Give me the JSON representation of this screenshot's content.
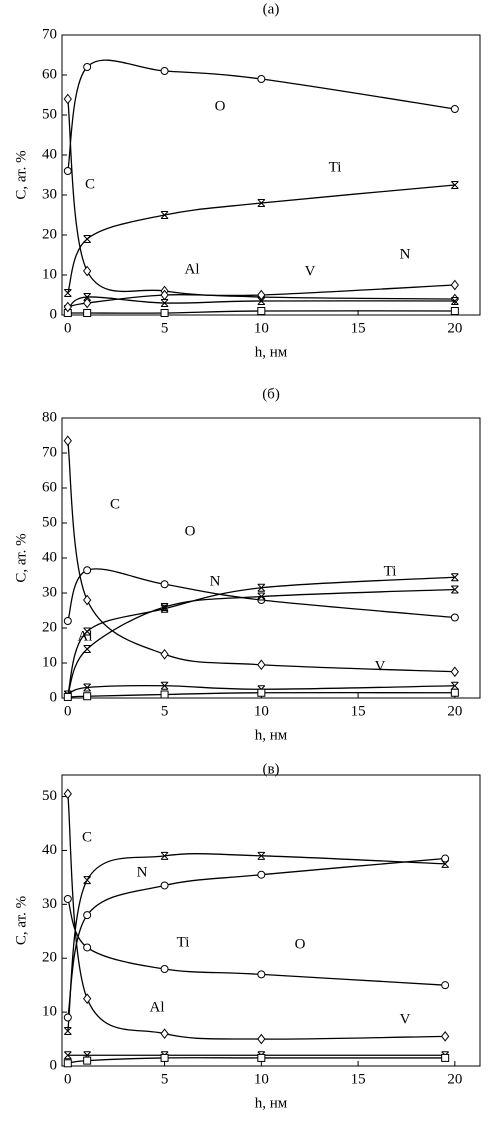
{
  "chart_data": [
    {
      "type": "line",
      "title": "(а)",
      "x_label": "h, нм",
      "y_label": "C, ат. %",
      "color": "#000000",
      "xlim": [
        -0.3,
        21.3
      ],
      "ylim": [
        0,
        70
      ],
      "xticks": [
        0,
        5,
        10,
        15,
        20
      ],
      "yticks": [
        0,
        10,
        20,
        30,
        40,
        50,
        60,
        70
      ],
      "x": [
        0,
        1,
        5,
        10,
        20
      ],
      "series": [
        {
          "name": "O",
          "marker": "circle",
          "values": [
            36,
            62,
            61,
            59,
            51.5
          ]
        },
        {
          "name": "C",
          "marker": "diamond",
          "values": [
            54,
            11,
            6,
            4.5,
            4
          ]
        },
        {
          "name": "Ti",
          "marker": "cross",
          "values": [
            5.5,
            19,
            25,
            28,
            32.5
          ]
        },
        {
          "name": "Al",
          "marker": "cross",
          "values": [
            1.5,
            4.5,
            3,
            3.5,
            3.5
          ]
        },
        {
          "name": "V",
          "marker": "square",
          "values": [
            0.5,
            0.5,
            0.5,
            1,
            1
          ]
        },
        {
          "name": "N",
          "marker": "diamond",
          "values": [
            2,
            3,
            5,
            5,
            7.5
          ]
        }
      ]
    },
    {
      "type": "line",
      "title": "(б)",
      "x_label": "h, нм",
      "y_label": "C, ат. %",
      "color": "#000000",
      "xlim": [
        -0.3,
        21.3
      ],
      "ylim": [
        0,
        80
      ],
      "xticks": [
        0,
        5,
        10,
        15,
        20
      ],
      "yticks": [
        0,
        10,
        20,
        30,
        40,
        50,
        60,
        70,
        80
      ],
      "x": [
        0,
        1,
        5,
        10,
        20
      ],
      "series": [
        {
          "name": "C",
          "marker": "diamond",
          "values": [
            73.5,
            28,
            12.5,
            9.5,
            7.5
          ]
        },
        {
          "name": "O",
          "marker": "circle",
          "values": [
            22,
            36.5,
            32.5,
            28,
            23
          ]
        },
        {
          "name": "Ti",
          "marker": "cross",
          "values": [
            1,
            19,
            25.5,
            31.5,
            34.5
          ]
        },
        {
          "name": "N",
          "marker": "cross",
          "values": [
            1,
            14,
            26,
            29,
            31
          ]
        },
        {
          "name": "Al",
          "marker": "cross",
          "values": [
            1,
            3,
            3.5,
            2.5,
            3.5
          ]
        },
        {
          "name": "V",
          "marker": "square",
          "values": [
            0.3,
            0.5,
            1,
            1.5,
            1.5
          ]
        }
      ]
    },
    {
      "type": "line",
      "title": "(в)",
      "x_label": "h, нм",
      "y_label": "C, ат. %",
      "color": "#000000",
      "xlim": [
        -0.3,
        21.3
      ],
      "ylim": [
        0,
        54
      ],
      "xticks": [
        0,
        5,
        10,
        15,
        20
      ],
      "yticks": [
        0,
        10,
        20,
        30,
        40,
        50
      ],
      "x": [
        0,
        1,
        5,
        10,
        19.5
      ],
      "series": [
        {
          "name": "C",
          "marker": "diamond",
          "values": [
            50.5,
            12.5,
            6,
            5,
            5.5
          ]
        },
        {
          "name": "N",
          "marker": "cross",
          "values": [
            6.5,
            34.5,
            39,
            39,
            37.5
          ]
        },
        {
          "name": "Ti",
          "marker": "circle",
          "values": [
            9,
            28,
            33.5,
            35.5,
            38.5
          ]
        },
        {
          "name": "O",
          "marker": "circle",
          "values": [
            31,
            22,
            18,
            17,
            15
          ]
        },
        {
          "name": "Al",
          "marker": "cross",
          "values": [
            2,
            2,
            2,
            2,
            2
          ]
        },
        {
          "name": "V",
          "marker": "square",
          "values": [
            0.5,
            1,
            1.5,
            1.5,
            1.5
          ]
        }
      ]
    }
  ]
}
